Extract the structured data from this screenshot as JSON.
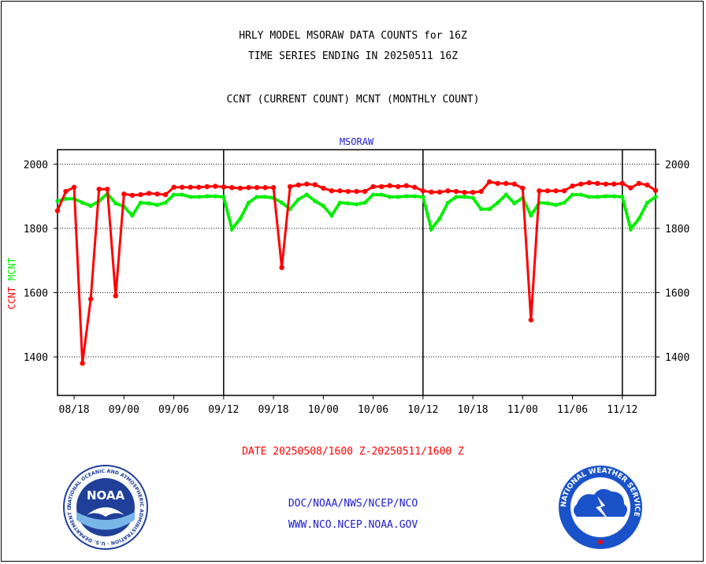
{
  "header": {
    "title_line1": "HRLY MODEL MSORAW DATA COUNTS for 16Z",
    "title_line2": "TIME SERIES ENDING IN 20250511 16Z",
    "subtitle": "CCNT (CURRENT COUNT) MCNT (MONTHLY COUNT)"
  },
  "date_range": "DATE 20250508/1600 Z-20250511/1600 Z",
  "footer": {
    "line1": "DOC/NOAA/NWS/NCEP/NCO",
    "line2": "WWW.NCO.NCEP.NOAA.GOV"
  },
  "logos": {
    "noaa_text": "NOAA",
    "noaa_ring": "NATIONAL OCEANIC AND ATMOSPHERIC ADMINISTRATION · U.S. DEPARTMENT OF COMMERCE",
    "nws_ring": "NATIONAL WEATHER SERVICE"
  },
  "colors": {
    "ccnt": "#ff0000",
    "mcnt": "#00ee00",
    "title_blue": "#1c1cd6",
    "date_red": "#ff0000",
    "noaa_blue": "#1f3f99",
    "nws_blue": "#1a52c9"
  },
  "chart_data": {
    "type": "line",
    "title": "MSORAW",
    "ylabel_ccnt": "CCNT",
    "ylabel_mcnt": "MCNT",
    "ylim": [
      1280,
      2045
    ],
    "y_ticks": [
      1400,
      1600,
      1800,
      2000
    ],
    "x_tick_labels": [
      "08/18",
      "09/00",
      "09/06",
      "09/12",
      "09/18",
      "10/00",
      "10/06",
      "10/12",
      "10/18",
      "11/00",
      "11/06",
      "11/12"
    ],
    "x_tick_hours": [
      2,
      8,
      14,
      20,
      26,
      32,
      38,
      44,
      50,
      56,
      62,
      68
    ],
    "xlim": [
      0,
      72
    ],
    "day_boundaries": [
      20,
      44,
      68
    ],
    "grid": "horizontal dotted",
    "series": [
      {
        "name": "CCNT",
        "x": [
          0,
          1,
          2,
          3,
          4,
          5,
          6,
          7,
          8,
          9,
          10,
          11,
          12,
          13,
          14,
          15,
          16,
          17,
          18,
          19,
          20,
          21,
          22,
          23,
          24,
          25,
          26,
          27,
          28,
          29,
          30,
          31,
          32,
          33,
          34,
          35,
          36,
          37,
          38,
          39,
          40,
          41,
          42,
          43,
          44,
          45,
          46,
          47,
          48,
          49,
          50,
          51,
          52,
          53,
          54,
          55,
          56,
          57,
          58,
          59,
          60,
          61,
          62,
          63,
          64,
          65,
          66,
          67,
          68,
          69,
          70,
          71,
          72
        ],
        "values": [
          1855,
          1915,
          1928,
          1380,
          1580,
          1922,
          1922,
          1590,
          1907,
          1903,
          1905,
          1909,
          1907,
          1905,
          1928,
          1928,
          1928,
          1928,
          1930,
          1931,
          1929,
          1927,
          1925,
          1927,
          1927,
          1927,
          1927,
          1678,
          1930,
          1935,
          1938,
          1936,
          1925,
          1917,
          1917,
          1915,
          1915,
          1915,
          1930,
          1930,
          1933,
          1930,
          1933,
          1928,
          1917,
          1913,
          1913,
          1917,
          1915,
          1912,
          1912,
          1915,
          1945,
          1940,
          1940,
          1938,
          1925,
          1515,
          1917,
          1917,
          1917,
          1917,
          1932,
          1938,
          1942,
          1940,
          1938,
          1938,
          1940,
          1926,
          1940,
          1935,
          1918
        ]
      },
      {
        "name": "MCNT",
        "x": [
          0,
          1,
          2,
          3,
          4,
          5,
          6,
          7,
          8,
          9,
          10,
          11,
          12,
          13,
          14,
          15,
          16,
          17,
          18,
          19,
          20,
          21,
          22,
          23,
          24,
          25,
          26,
          27,
          28,
          29,
          30,
          31,
          32,
          33,
          34,
          35,
          36,
          37,
          38,
          39,
          40,
          41,
          42,
          43,
          44,
          45,
          46,
          47,
          48,
          49,
          50,
          51,
          52,
          53,
          54,
          55,
          56,
          57,
          58,
          59,
          60,
          61,
          62,
          63,
          64,
          65,
          66,
          67,
          68,
          69,
          70,
          71,
          72
        ],
        "values": [
          1885,
          1892,
          1892,
          1880,
          1870,
          1885,
          1908,
          1878,
          1868,
          1840,
          1880,
          1878,
          1873,
          1880,
          1905,
          1905,
          1898,
          1898,
          1900,
          1900,
          1898,
          1798,
          1830,
          1880,
          1898,
          1898,
          1895,
          1880,
          1860,
          1890,
          1905,
          1885,
          1870,
          1840,
          1880,
          1878,
          1875,
          1880,
          1905,
          1905,
          1898,
          1898,
          1900,
          1900,
          1898,
          1798,
          1830,
          1880,
          1898,
          1898,
          1895,
          1860,
          1860,
          1880,
          1905,
          1878,
          1895,
          1840,
          1880,
          1878,
          1873,
          1880,
          1905,
          1905,
          1898,
          1898,
          1900,
          1900,
          1898,
          1798,
          1830,
          1880,
          1898
        ]
      }
    ]
  }
}
